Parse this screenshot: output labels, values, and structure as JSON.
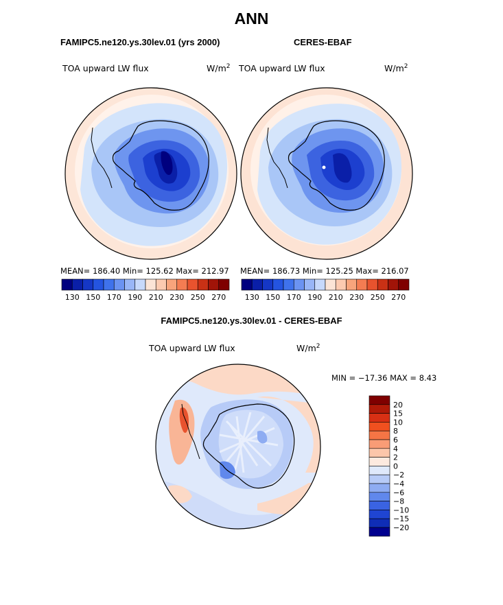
{
  "title": "ANN",
  "panels": [
    {
      "title": "FAMIPC5.ne120.ys.30lev.01 (yrs 2000)",
      "variable": "TOA upward LW flux",
      "units": "W/m",
      "units_exp": "2",
      "stats": "MEAN= 186.40   Min= 125.62   Max= 212.97"
    },
    {
      "title": "CERES-EBAF",
      "variable": "TOA upward LW flux",
      "units": "W/m",
      "units_exp": "2",
      "stats": "MEAN= 186.73   Min= 125.25   Max= 216.07"
    }
  ],
  "abs_colorbar": {
    "colors": [
      "#00007f",
      "#0a1fa8",
      "#1537c6",
      "#2454e0",
      "#3f72ec",
      "#6b93f2",
      "#99b6f7",
      "#c7d9fb",
      "#fbe4d6",
      "#fccab0",
      "#f8a47c",
      "#f47c52",
      "#e8532e",
      "#c93115",
      "#a11408",
      "#7f0000"
    ],
    "tick_labels": [
      "130",
      "150",
      "170",
      "190",
      "210",
      "230",
      "250",
      "270"
    ]
  },
  "diff": {
    "title": "FAMIPC5.ne120.ys.30lev.01 - CERES-EBAF",
    "variable": "TOA upward LW flux",
    "units": "W/m",
    "units_exp": "2",
    "minmax": "MIN = −17.36 MAX =    8.43",
    "colors": [
      "#7f0000",
      "#b01a08",
      "#d83014",
      "#f0501f",
      "#f57545",
      "#f99c76",
      "#fcc6aa",
      "#fdeadf",
      "#dfe9fb",
      "#b7cbf7",
      "#8eacf2",
      "#6088ec",
      "#3a63e2",
      "#1f45d2",
      "#0f2db6",
      "#00008f"
    ],
    "tick_labels": [
      "20",
      "15",
      "10",
      "8",
      "6",
      "4",
      "2",
      "0",
      "−2",
      "−4",
      "−6",
      "−8",
      "−10",
      "−15",
      "−20"
    ]
  }
}
